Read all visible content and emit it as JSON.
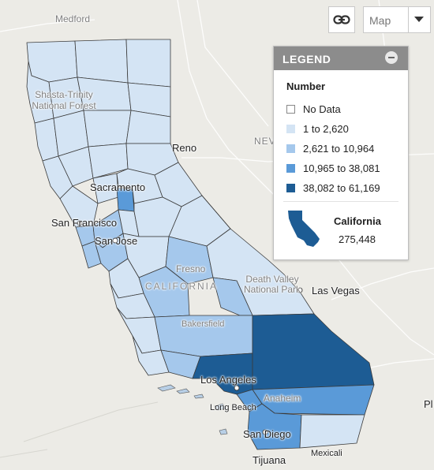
{
  "map": {
    "type_selector": "Map",
    "state_label": "CALIFORNIA"
  },
  "places": {
    "medford": "Medford",
    "forest": "Shasta-Trinity National Forest",
    "reno": "Reno",
    "nev": "NEV",
    "sacramento": "Sacramento",
    "san_francisco": "San Francisco",
    "san_jose": "San Jose",
    "fresno": "Fresno",
    "death_valley": "Death Valley National Park",
    "las_vegas": "Las Vegas",
    "bakersfield": "Bakersfield",
    "los_angeles": "Los Angeles",
    "anaheim": "Anaheim",
    "long_beach": "Long Beach",
    "san_diego": "San Diego",
    "tijuana": "Tijuana",
    "mexicali": "Mexicali",
    "edge_text": "Pl"
  },
  "legend": {
    "title": "LEGEND",
    "heading": "Number",
    "items": [
      {
        "label": "No Data",
        "color": "#ffffff"
      },
      {
        "label": "1 to 2,620",
        "color": "#d4e4f4"
      },
      {
        "label": "2,621 to 10,964",
        "color": "#a5c8ec"
      },
      {
        "label": "10,965 to 38,081",
        "color": "#5a9ad8"
      },
      {
        "label": "38,082 to 61,169",
        "color": "#1d5c94"
      }
    ],
    "state_name": "California",
    "state_value": "275,448"
  },
  "icons": {
    "link": "link-icon",
    "dropdown": "chevron-down-icon",
    "collapse": "minus-icon"
  }
}
